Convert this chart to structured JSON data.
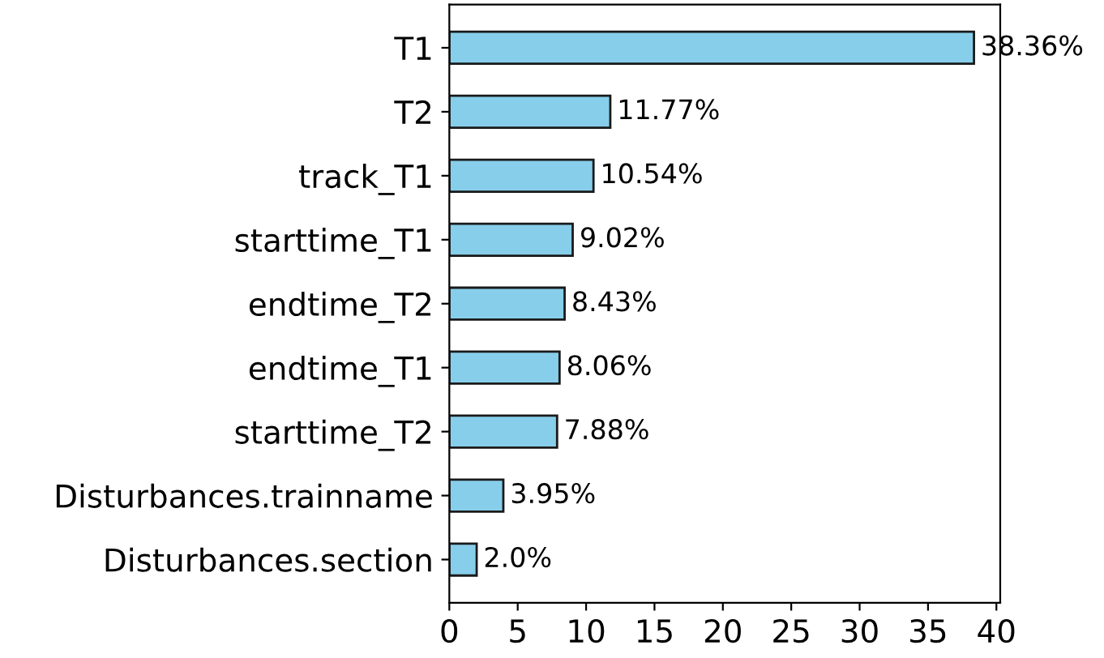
{
  "chart_data": {
    "type": "bar",
    "orientation": "horizontal",
    "categories": [
      "T1",
      "T2",
      "track_T1",
      "starttime_T1",
      "endtime_T2",
      "endtime_T1",
      "starttime_T2",
      "Disturbances.trainname",
      "Disturbances.section"
    ],
    "values": [
      38.36,
      11.77,
      10.54,
      9.02,
      8.43,
      8.06,
      7.88,
      3.95,
      2.0
    ],
    "value_labels": [
      "38.36%",
      "11.77%",
      "10.54%",
      "9.02%",
      "8.43%",
      "8.06%",
      "7.88%",
      "3.95%",
      "2.0%"
    ],
    "color": "#87ceeb",
    "xlim": [
      0,
      40.28
    ],
    "xticks": [
      0,
      5,
      10,
      15,
      20,
      25,
      30,
      35,
      40
    ],
    "grid": false,
    "legend": false
  }
}
